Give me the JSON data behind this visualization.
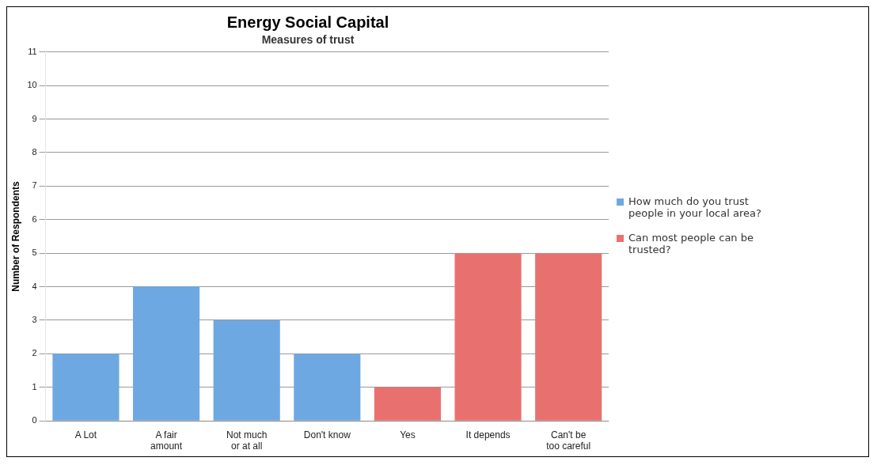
{
  "chart_data": {
    "type": "bar",
    "title": "Energy Social Capital",
    "subtitle": "Measures of trust",
    "ylabel": "Number of Respondents",
    "categories": [
      "A Lot",
      "A fair amount",
      "Not much or at all",
      "Don't know",
      "Yes",
      "It depends",
      "Can't be too careful"
    ],
    "series": [
      {
        "name": "How much do you trust people in your local area?",
        "color": "#6ea8e2",
        "values": [
          2,
          4,
          3,
          2,
          null,
          null,
          null
        ]
      },
      {
        "name": "Can most people can be trusted?",
        "color": "#e8716f",
        "values": [
          null,
          null,
          null,
          null,
          1,
          5,
          5
        ]
      }
    ],
    "ylim": [
      0,
      11
    ],
    "yticks": [
      0,
      1,
      2,
      3,
      4,
      5,
      6,
      7,
      8,
      9,
      10,
      11
    ],
    "grid": "y",
    "legend": "right"
  }
}
